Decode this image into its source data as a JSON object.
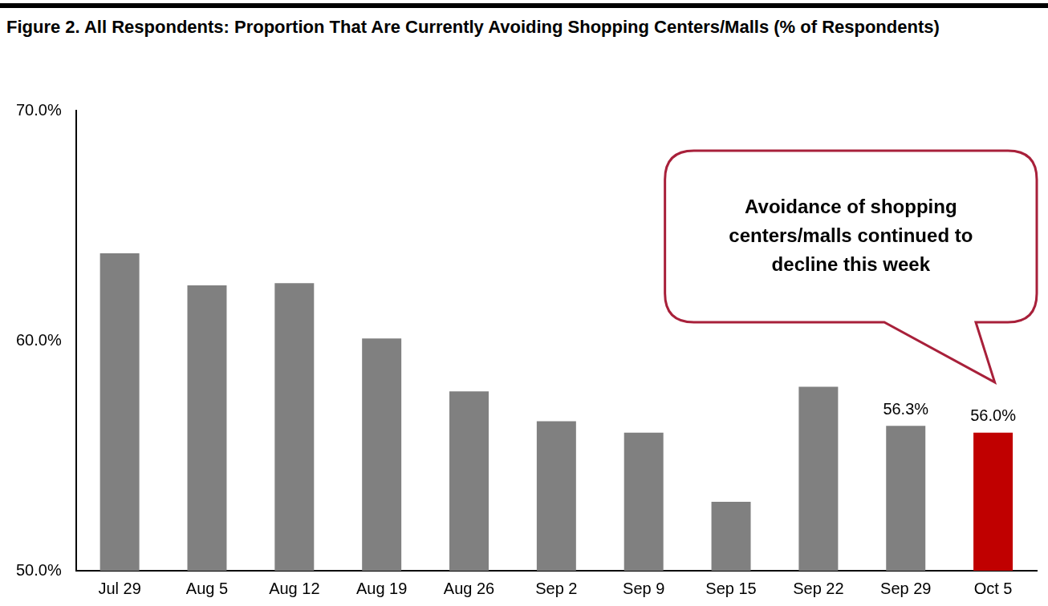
{
  "chart_data": {
    "type": "bar",
    "title": "Figure 2. All Respondents: Proportion That Are Currently Avoiding Shopping Centers/Malls (% of Respondents)",
    "categories": [
      "Jul 29",
      "Aug 5",
      "Aug 12",
      "Aug 19",
      "Aug 26",
      "Sep 2",
      "Sep 9",
      "Sep 15",
      "Sep 22",
      "Sep 29",
      "Oct 5"
    ],
    "values": [
      63.8,
      62.4,
      62.5,
      60.1,
      57.8,
      56.5,
      56.0,
      53.0,
      58.0,
      56.3,
      56.0
    ],
    "value_labels": [
      null,
      null,
      null,
      null,
      null,
      null,
      null,
      null,
      null,
      "56.3%",
      "56.0%"
    ],
    "data_labels": true,
    "colors": [
      "#808080",
      "#808080",
      "#808080",
      "#808080",
      "#808080",
      "#808080",
      "#808080",
      "#808080",
      "#808080",
      "#808080",
      "#c00000"
    ],
    "ylim": [
      50,
      70
    ],
    "yticks": [
      {
        "value": 50,
        "label": "50.0%"
      },
      {
        "value": 60,
        "label": "60.0%"
      },
      {
        "value": 70,
        "label": "70.0%"
      }
    ],
    "grid": false,
    "annotation": [
      "Avoidance of shopping",
      "centers/malls continued to",
      "decline this week"
    ]
  }
}
